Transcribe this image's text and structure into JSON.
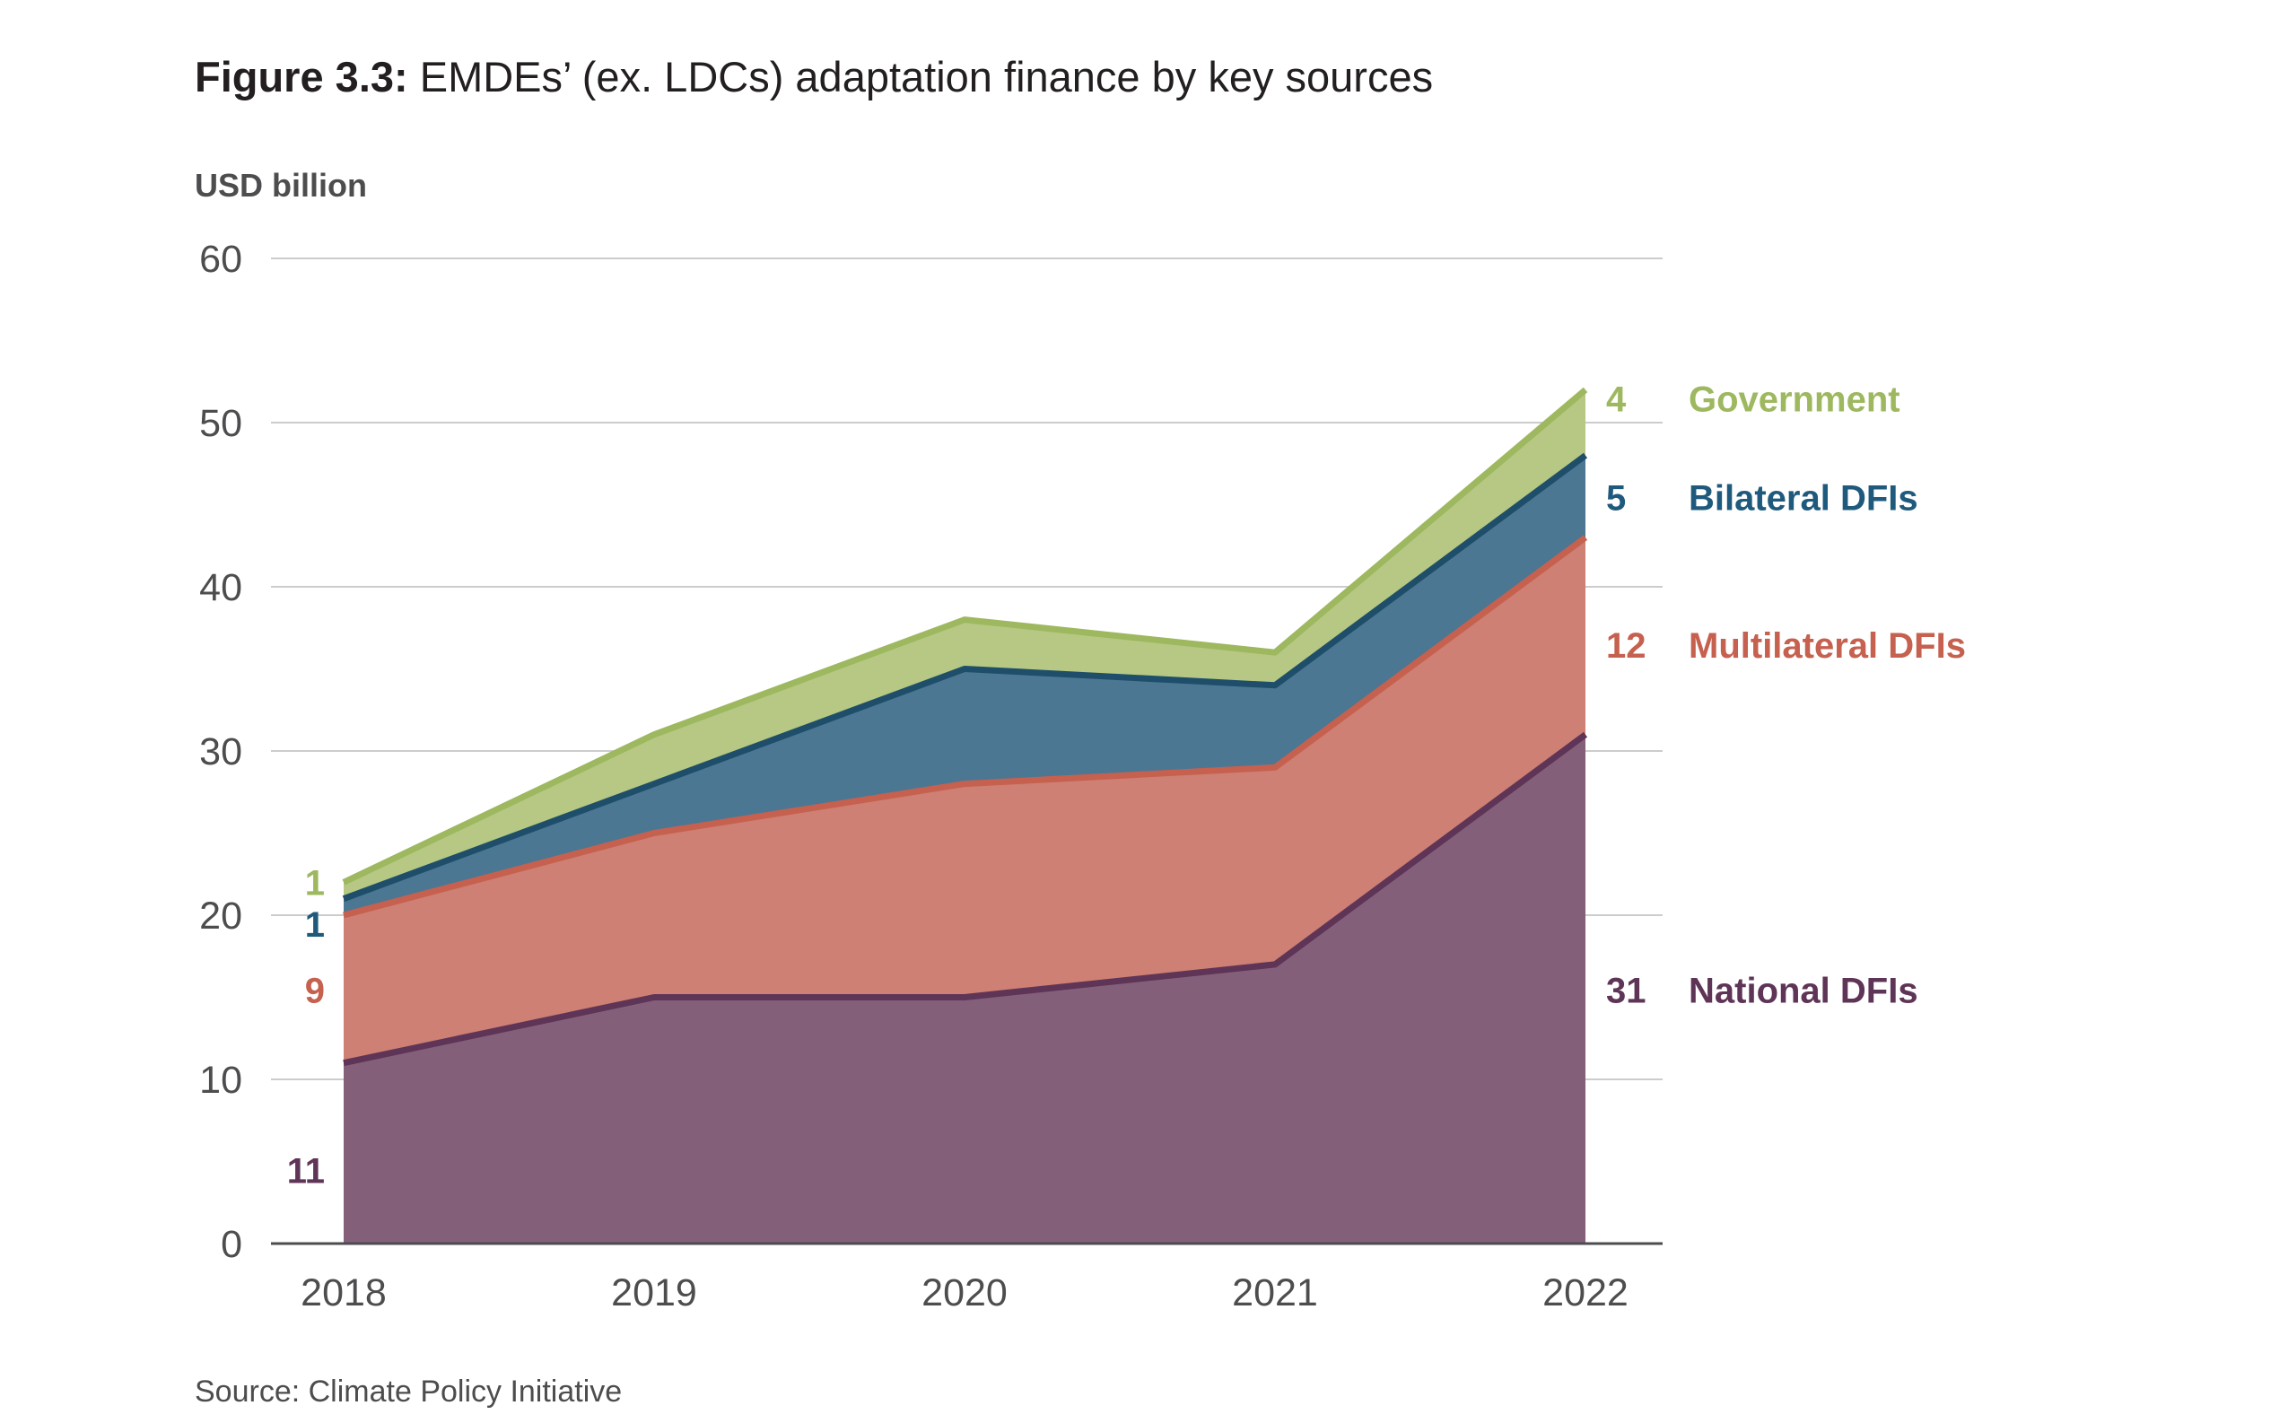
{
  "title": {
    "figure_number": "Figure 3.3:",
    "text": " EMDEs’ (ex. LDCs) adaptation finance by key sources"
  },
  "unit_label": "USD billion",
  "source": "Source: Climate Policy Initiative",
  "chart_data": {
    "type": "area",
    "stacked": true,
    "title": "Figure 3.3: EMDEs’ (ex. LDCs) adaptation finance by key sources",
    "ylabel": "USD billion",
    "xlabel": "",
    "categories": [
      "2018",
      "2019",
      "2020",
      "2021",
      "2022"
    ],
    "ylim": [
      0,
      60
    ],
    "yticks": [
      0,
      10,
      20,
      30,
      40,
      50,
      60
    ],
    "grid": true,
    "legend": "right",
    "series": [
      {
        "name": "National DFIs",
        "values": [
          11,
          15,
          15,
          17,
          31
        ],
        "fill": "#845f7a",
        "line": "#5e3457",
        "label_color": "#5e3457",
        "start_label": "11",
        "end_label": "31"
      },
      {
        "name": "Multilateral DFIs",
        "values": [
          9,
          10,
          13,
          12,
          12
        ],
        "fill": "#cd8073",
        "line": "#c6604f",
        "label_color": "#c6604f",
        "start_label": "9",
        "end_label": "12"
      },
      {
        "name": "Bilateral DFIs",
        "values": [
          1,
          3,
          7,
          5,
          5
        ],
        "fill": "#4b7793",
        "line": "#1f4e6b",
        "label_color": "#1f5a7d",
        "start_label": "1",
        "end_label": "5"
      },
      {
        "name": "Government",
        "values": [
          1,
          3,
          3,
          2,
          4
        ],
        "fill": "#b6c883",
        "line": "#9db85f",
        "label_color": "#9db85f",
        "start_label": "1",
        "end_label": "4"
      }
    ],
    "colors": {
      "grid": "#cccccc",
      "axis": "#4d4d4f",
      "tick_text": "#4d4d4f"
    }
  }
}
